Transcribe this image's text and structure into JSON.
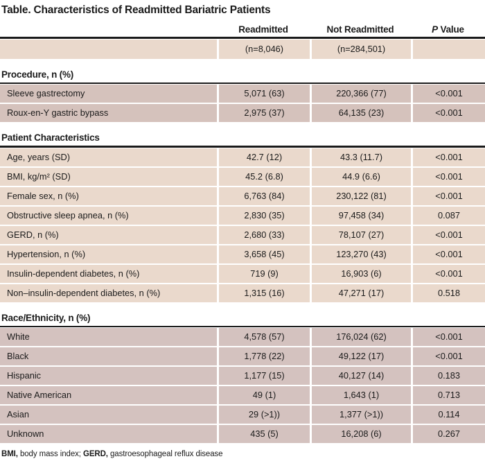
{
  "title": "Table. Characteristics of Readmitted Bariatric Patients",
  "columns": {
    "readmitted": "Readmitted",
    "not_readmitted": "Not Readmitted",
    "p_italic": "P",
    "p_rest": " Value"
  },
  "n_row": {
    "readmitted": "(n=8,046)",
    "not_readmitted": "(n=284,501)"
  },
  "colors": {
    "peach_row": "#ead9cc",
    "mauve_row": "#d5c2bc",
    "race_row": "#d4c2bf",
    "rule": "#1a1a1a",
    "separator": "#ffffff"
  },
  "sections": [
    {
      "header": "Procedure, n (%)",
      "rows": [
        {
          "label": "Sleeve gastrectomy",
          "readmitted": "5,071 (63)",
          "not_readmitted": "220,366 (77)",
          "p": "<0.001"
        },
        {
          "label": "Roux-en-Y gastric bypass",
          "readmitted": "2,975 (37)",
          "not_readmitted": "64,135 (23)",
          "p": "<0.001"
        }
      ]
    },
    {
      "header": "Patient Characteristics",
      "rows": [
        {
          "label": "Age, years (SD)",
          "readmitted": "42.7 (12)",
          "not_readmitted": "43.3 (11.7)",
          "p": "<0.001"
        },
        {
          "label": "BMI, kg/m² (SD)",
          "readmitted": "45.2 (6.8)",
          "not_readmitted": "44.9 (6.6)",
          "p": "<0.001"
        },
        {
          "label": "Female sex, n (%)",
          "readmitted": "6,763 (84)",
          "not_readmitted": "230,122 (81)",
          "p": "<0.001"
        },
        {
          "label": "Obstructive sleep apnea, n (%)",
          "readmitted": "2,830 (35)",
          "not_readmitted": "97,458 (34)",
          "p": "0.087"
        },
        {
          "label": "GERD, n (%)",
          "readmitted": "2,680 (33)",
          "not_readmitted": "78,107 (27)",
          "p": "<0.001"
        },
        {
          "label": "Hypertension, n (%)",
          "readmitted": "3,658 (45)",
          "not_readmitted": "123,270 (43)",
          "p": "<0.001"
        },
        {
          "label": "Insulin-dependent diabetes, n (%)",
          "readmitted": "719 (9)",
          "not_readmitted": "16,903 (6)",
          "p": "<0.001"
        },
        {
          "label": "Non–insulin-dependent diabetes, n (%)",
          "readmitted": "1,315 (16)",
          "not_readmitted": "47,271 (17)",
          "p": "0.518"
        }
      ]
    },
    {
      "header": "Race/Ethnicity, n (%)",
      "rows": [
        {
          "label": "White",
          "readmitted": "4,578 (57)",
          "not_readmitted": "176,024 (62)",
          "p": "<0.001"
        },
        {
          "label": "Black",
          "readmitted": "1,778 (22)",
          "not_readmitted": "49,122 (17)",
          "p": "<0.001"
        },
        {
          "label": "Hispanic",
          "readmitted": "1,177 (15)",
          "not_readmitted": "40,127 (14)",
          "p": "0.183"
        },
        {
          "label": "Native American",
          "readmitted": "49 (1)",
          "not_readmitted": "1,643 (1)",
          "p": "0.713"
        },
        {
          "label": "Asian",
          "readmitted": "29 (>1))",
          "not_readmitted": "1,377 (>1))",
          "p": "0.114"
        },
        {
          "label": "Unknown",
          "readmitted": "435 (5)",
          "not_readmitted": "16,208 (6)",
          "p": "0.267"
        }
      ]
    }
  ],
  "footnote": {
    "bmi_bold": "BMI,",
    "bmi_text": " body mass index; ",
    "gerd_bold": "GERD,",
    "gerd_text": " gastroesophageal reflux disease"
  }
}
